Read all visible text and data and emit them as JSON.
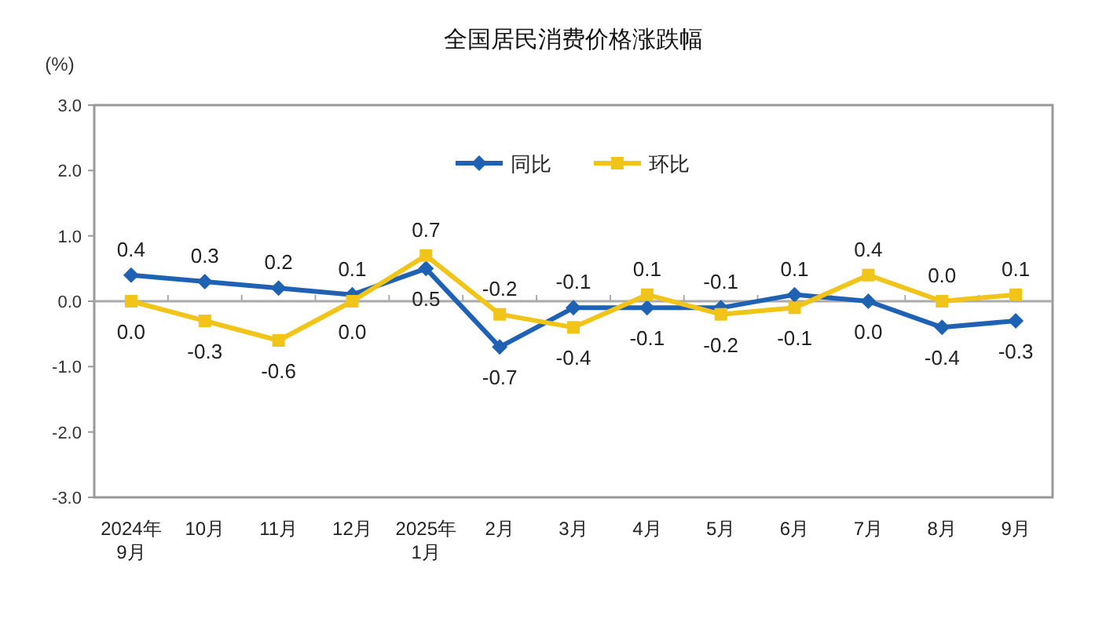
{
  "chart_data": {
    "type": "line",
    "title": "全国居民消费价格涨跌幅",
    "ylabel": "(%)",
    "categories": [
      "2024年\n9月",
      "10月",
      "11月",
      "12月",
      "2025年\n1月",
      "2月",
      "3月",
      "4月",
      "5月",
      "6月",
      "7月",
      "8月",
      "9月"
    ],
    "series": [
      {
        "name": "同比",
        "color": "#1f62b4",
        "marker": "diamond",
        "values": [
          0.4,
          0.3,
          0.2,
          0.1,
          0.5,
          -0.7,
          -0.1,
          -0.1,
          -0.1,
          0.1,
          0.0,
          -0.4,
          -0.3
        ],
        "value_labels": [
          "0.4",
          "0.3",
          "0.2",
          "0.1",
          "0.5",
          "-0.7",
          "-0.1",
          "-0.1",
          "-0.1",
          "0.1",
          "0.0",
          "-0.4",
          "-0.3"
        ]
      },
      {
        "name": "环比",
        "color": "#f0c419",
        "marker": "square",
        "values": [
          0.0,
          -0.3,
          -0.6,
          0.0,
          0.7,
          -0.2,
          -0.4,
          0.1,
          -0.2,
          -0.1,
          0.4,
          0.0,
          0.1
        ],
        "value_labels": [
          "0.0",
          "-0.3",
          "-0.6",
          "0.0",
          "0.7",
          "-0.2",
          "-0.4",
          "0.1",
          "-0.2",
          "-0.1",
          "0.4",
          "0.0",
          "0.1"
        ]
      }
    ],
    "ylim": [
      -3,
      3
    ],
    "yticks": [
      {
        "value": -3,
        "label": "-3.0"
      },
      {
        "value": -2,
        "label": "-2.0"
      },
      {
        "value": -1,
        "label": "-1.0"
      },
      {
        "value": 0,
        "label": "0.0"
      },
      {
        "value": 1,
        "label": "1.0"
      },
      {
        "value": 2,
        "label": "2.0"
      },
      {
        "value": 3,
        "label": "3.0"
      }
    ],
    "legend": "top",
    "line_style": "solid"
  }
}
